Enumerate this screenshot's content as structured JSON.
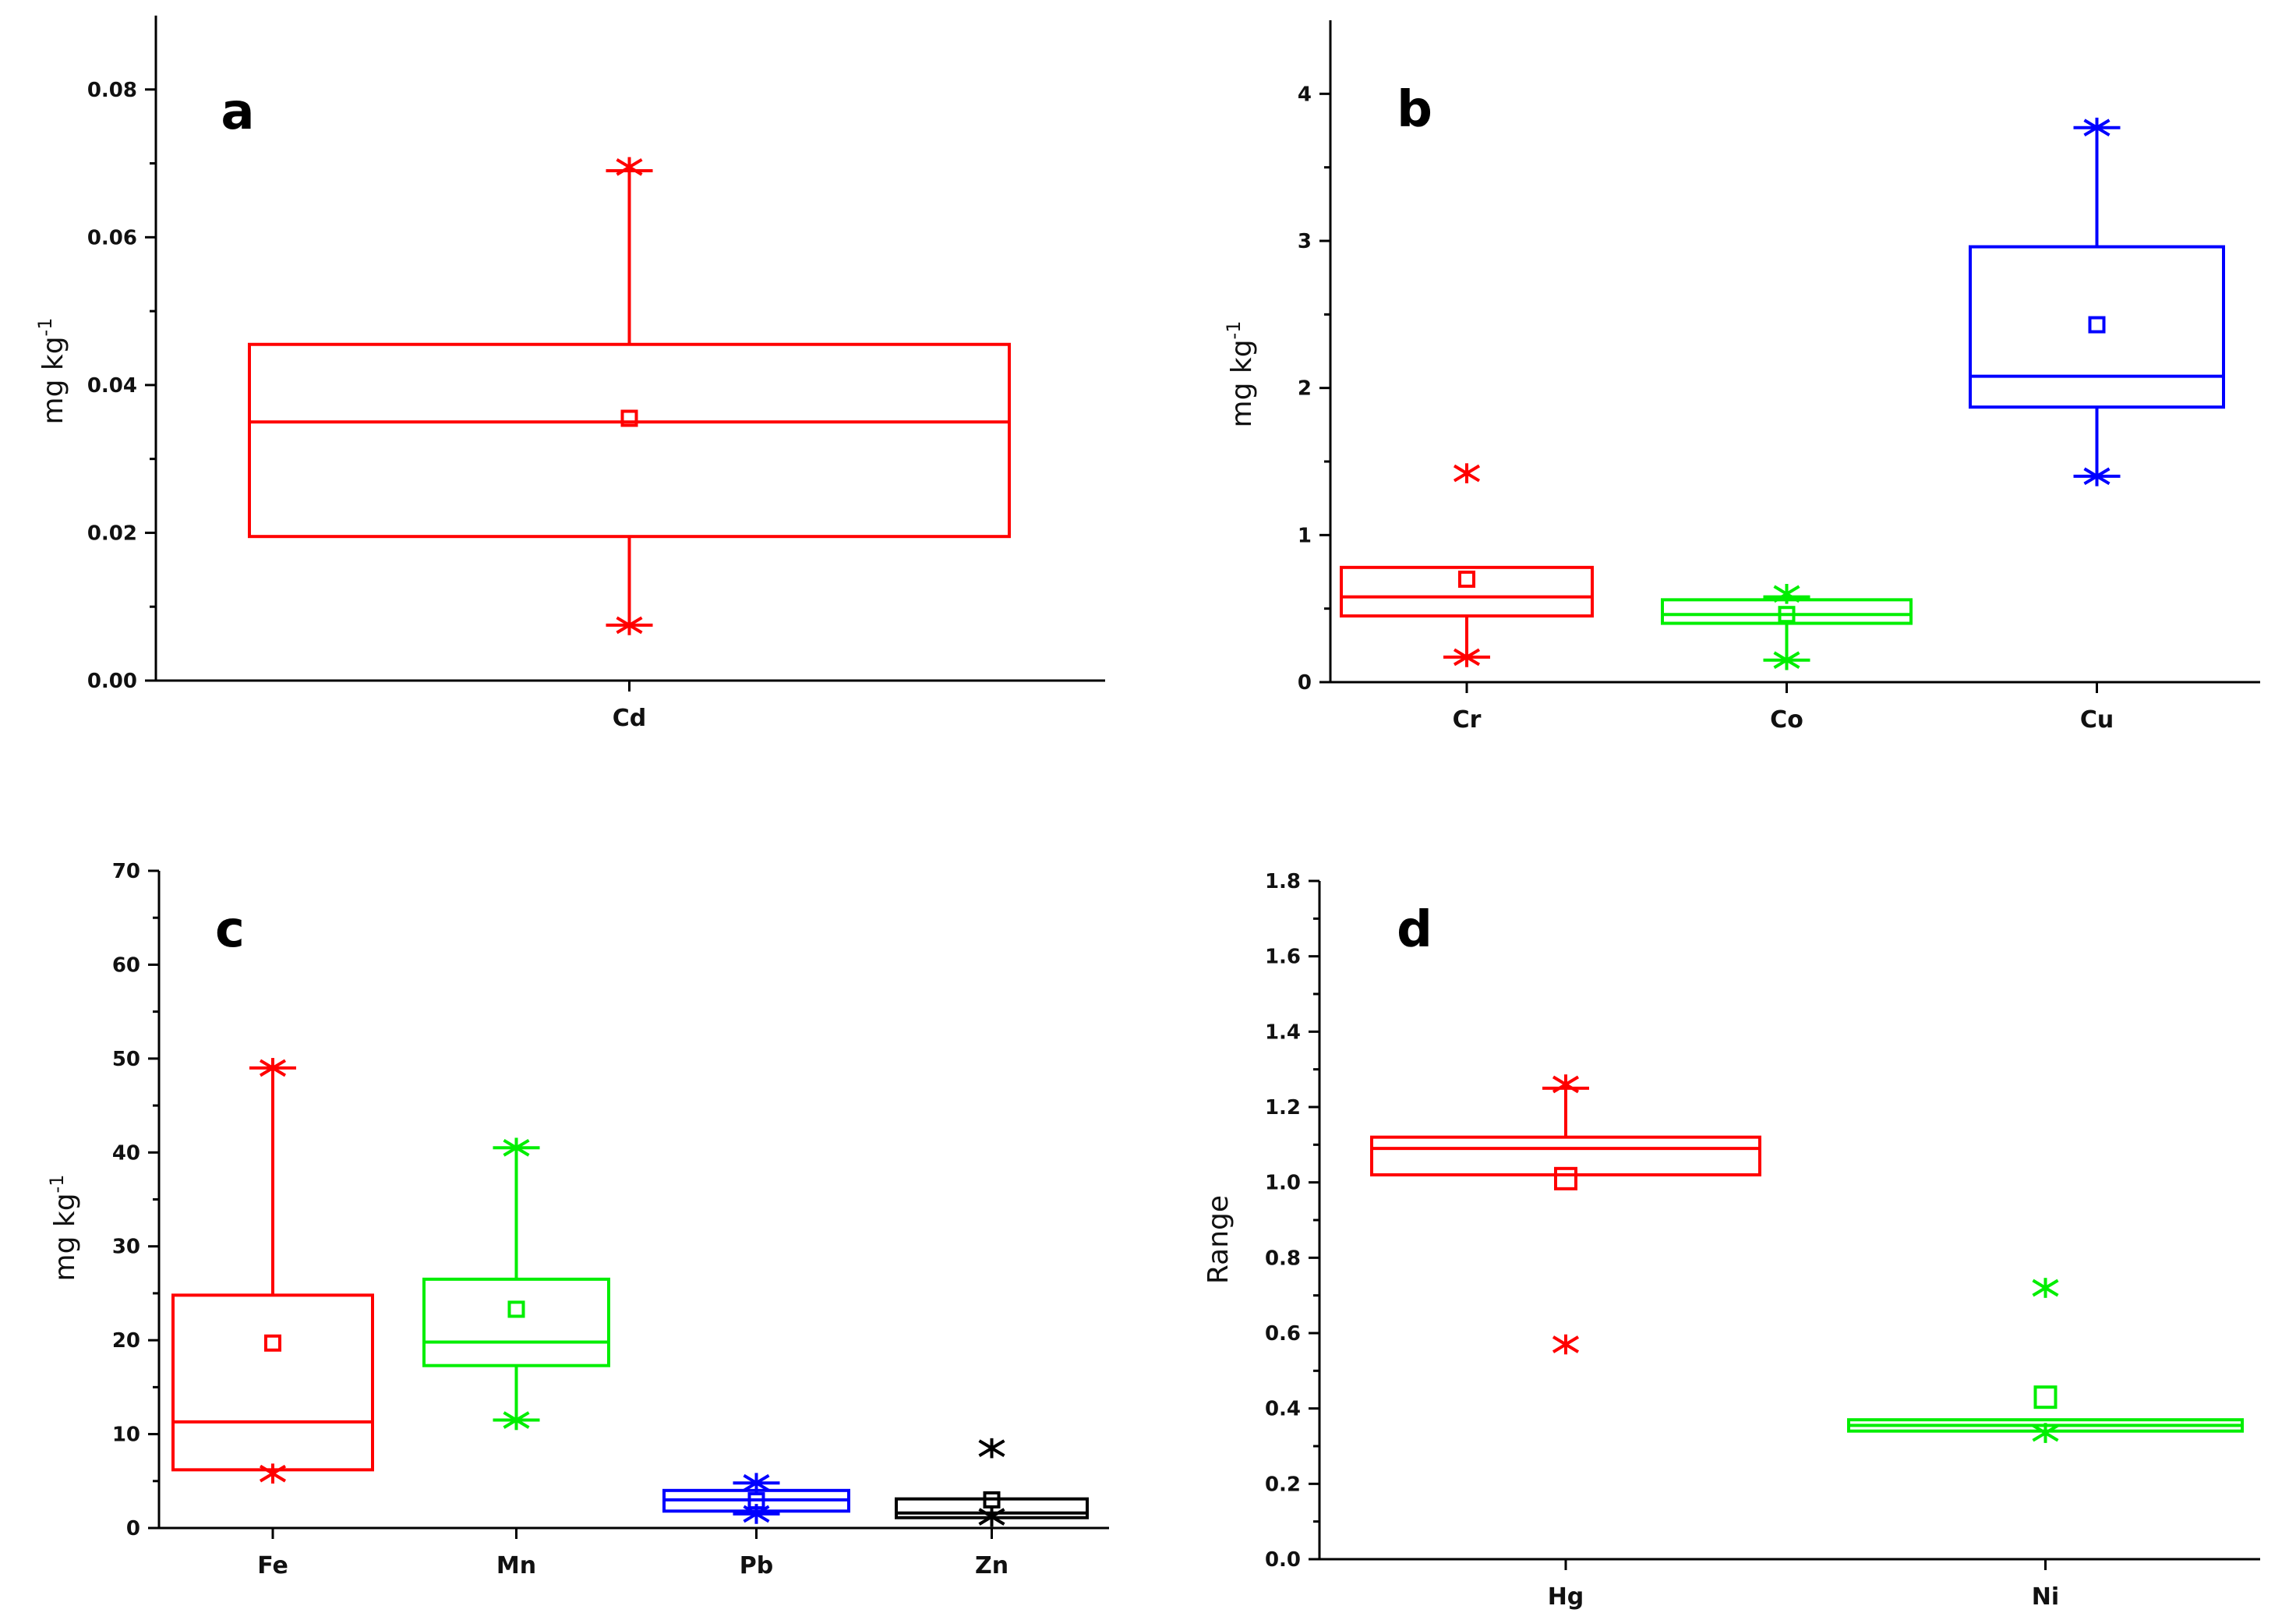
{
  "chart_data": [
    {
      "panel": "a",
      "type": "box",
      "ylabel": "mg kg-1",
      "ylabel_main": "mg kg",
      "ylabel_sup": "-1",
      "ylim": [
        0,
        0.09
      ],
      "yticks": [
        0.0,
        0.02,
        0.04,
        0.06,
        0.08
      ],
      "ytick_labels": [
        "0.00",
        "0.02",
        "0.04",
        "0.06",
        "0.08"
      ],
      "categories": [
        "Cd"
      ],
      "boxes": [
        {
          "name": "Cd",
          "color": "#ff0000",
          "q1": 0.0195,
          "median": 0.035,
          "q3": 0.0455,
          "whisker_low": 0.0075,
          "whisker_high": 0.069,
          "mean": 0.0355,
          "min": 0.0075,
          "max": 0.0695
        }
      ]
    },
    {
      "panel": "b",
      "type": "box",
      "ylabel": "mg kg-1",
      "ylabel_main": "mg kg",
      "ylabel_sup": "-1",
      "ylim": [
        0,
        4.5
      ],
      "yticks": [
        0,
        1,
        2,
        3,
        4
      ],
      "ytick_labels": [
        "0",
        "1",
        "2",
        "3",
        "4"
      ],
      "categories": [
        "Cr",
        "Co",
        "Cu"
      ],
      "boxes": [
        {
          "name": "Cr",
          "color": "#ff0000",
          "q1": 0.45,
          "median": 0.58,
          "q3": 0.78,
          "whisker_low": 0.17,
          "whisker_high": 0.78,
          "mean": 0.7,
          "min": 0.17,
          "max": 1.42
        },
        {
          "name": "Co",
          "color": "#00ee00",
          "q1": 0.4,
          "median": 0.46,
          "q3": 0.56,
          "whisker_low": 0.15,
          "whisker_high": 0.58,
          "mean": 0.46,
          "min": 0.15,
          "max": 0.6
        },
        {
          "name": "Cu",
          "color": "#0000ff",
          "q1": 1.87,
          "median": 2.08,
          "q3": 2.96,
          "whisker_low": 1.4,
          "whisker_high": 3.77,
          "mean": 2.43,
          "min": 1.4,
          "max": 3.77
        }
      ]
    },
    {
      "panel": "c",
      "type": "box",
      "ylabel": "mg kg-1",
      "ylabel_main": "mg kg",
      "ylabel_sup": "-1",
      "ylim": [
        0,
        70
      ],
      "yticks": [
        0,
        10,
        20,
        30,
        40,
        50,
        60,
        70
      ],
      "ytick_labels": [
        "0",
        "10",
        "20",
        "30",
        "40",
        "50",
        "60",
        "70"
      ],
      "categories": [
        "Fe",
        "Mn",
        "Pb",
        "Zn"
      ],
      "boxes": [
        {
          "name": "Fe",
          "color": "#ff0000",
          "q1": 6.2,
          "median": 11.3,
          "q3": 24.8,
          "whisker_low": 6.2,
          "whisker_high": 49.0,
          "mean": 19.7,
          "min": 5.8,
          "max": 49.0
        },
        {
          "name": "Mn",
          "color": "#00ee00",
          "q1": 17.3,
          "median": 19.8,
          "q3": 26.5,
          "whisker_low": 11.5,
          "whisker_high": 40.5,
          "mean": 23.3,
          "min": 11.5,
          "max": 40.5
        },
        {
          "name": "Pb",
          "color": "#0000ff",
          "q1": 1.8,
          "median": 3.0,
          "q3": 4.0,
          "whisker_low": 1.5,
          "whisker_high": 4.8,
          "mean": 2.9,
          "min": 1.5,
          "max": 4.8
        },
        {
          "name": "Zn",
          "color": "#000000",
          "q1": 1.1,
          "median": 1.6,
          "q3": 3.1,
          "whisker_low": 1.1,
          "whisker_high": 3.1,
          "mean": 3.0,
          "min": 1.2,
          "max": 8.5
        }
      ]
    },
    {
      "panel": "d",
      "type": "box",
      "ylabel": "Range",
      "ylabel_main": "Range",
      "ylabel_sup": "",
      "ylim": [
        0,
        1.8
      ],
      "yticks": [
        0.0,
        0.2,
        0.4,
        0.6,
        0.8,
        1.0,
        1.2,
        1.4,
        1.6,
        1.8
      ],
      "ytick_labels": [
        "0.0",
        "0.2",
        "0.4",
        "0.6",
        "0.8",
        "1.0",
        "1.2",
        "1.4",
        "1.6",
        "1.8"
      ],
      "categories": [
        "Hg",
        "Ni"
      ],
      "boxes": [
        {
          "name": "Hg",
          "color": "#ff0000",
          "q1": 1.02,
          "median": 1.09,
          "q3": 1.12,
          "whisker_low": 1.02,
          "whisker_high": 1.25,
          "mean": 1.01,
          "min": 0.57,
          "max": 1.26
        },
        {
          "name": "Ni",
          "color": "#00ee00",
          "q1": 0.34,
          "median": 0.355,
          "q3": 0.37,
          "whisker_low": 0.34,
          "whisker_high": 0.37,
          "mean": 0.43,
          "min": 0.335,
          "max": 0.72
        }
      ]
    }
  ]
}
